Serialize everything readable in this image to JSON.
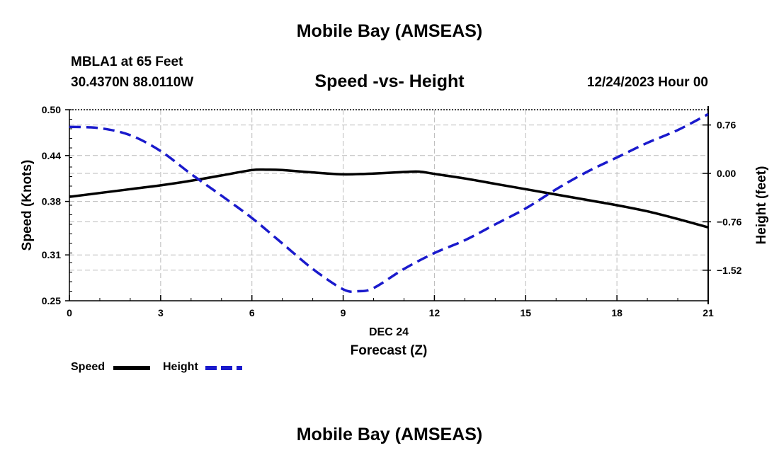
{
  "header": {
    "title": "Mobile Bay (AMSEAS)",
    "station": "MBLA1 at 65 Feet",
    "coordinates": "30.4370N  88.0110W",
    "subtitle": "Speed -vs- Height",
    "datetime": "12/24/2023 Hour 00"
  },
  "footer": {
    "title": "Mobile Bay (AMSEAS)"
  },
  "legend": {
    "speed_label": "Speed",
    "height_label": "Height"
  },
  "colors": {
    "speed": "#000000",
    "height": "#1a1acc",
    "grid": "#bbbbbb"
  },
  "chart_data": {
    "type": "line",
    "title": "Speed -vs- Height",
    "xlabel": "Forecast (Z)",
    "xlabel_date": "DEC 24",
    "ylabel_left": "Speed (Knots)",
    "ylabel_right": "Height (feet)",
    "xlim": [
      0,
      21
    ],
    "x_ticks": [
      0,
      3,
      6,
      9,
      12,
      15,
      18,
      21
    ],
    "x_tick_labels": [
      "0",
      "3",
      "6",
      "9",
      "12",
      "15",
      "18",
      "21"
    ],
    "ylim_left": [
      0.25,
      0.5
    ],
    "y_left_ticks": [
      0.25,
      0.31,
      0.38,
      0.44,
      0.5
    ],
    "y_left_tick_labels": [
      "0.25",
      "0.31",
      "0.38",
      "0.44",
      "0.50"
    ],
    "ylim_right": [
      -2.0,
      1.0
    ],
    "y_right_ticks": [
      -1.52,
      -0.76,
      0.0,
      0.76
    ],
    "y_right_tick_labels": [
      "−1.52",
      "−0.76",
      "0.00",
      "0.76"
    ],
    "grid": true,
    "series": [
      {
        "name": "Speed",
        "axis": "left",
        "style": "solid",
        "x": [
          0,
          1,
          2,
          3,
          4,
          5,
          6,
          6.5,
          7,
          8,
          9,
          10,
          11,
          11.5,
          12,
          13,
          14,
          15,
          16,
          17,
          18,
          19,
          20,
          21
        ],
        "y": [
          0.386,
          0.391,
          0.396,
          0.401,
          0.407,
          0.414,
          0.421,
          0.4215,
          0.421,
          0.418,
          0.4155,
          0.4165,
          0.4185,
          0.419,
          0.416,
          0.41,
          0.403,
          0.396,
          0.389,
          0.382,
          0.375,
          0.367,
          0.357,
          0.346
        ]
      },
      {
        "name": "Height",
        "axis": "right",
        "style": "dashed",
        "x": [
          0,
          1,
          2,
          3,
          4,
          5,
          6,
          7,
          8,
          9,
          9.5,
          10,
          11,
          12,
          13,
          14,
          15,
          16,
          17,
          18,
          19,
          20,
          21
        ],
        "y": [
          0.73,
          0.71,
          0.6,
          0.35,
          -0.01,
          -0.35,
          -0.7,
          -1.1,
          -1.5,
          -1.82,
          -1.85,
          -1.8,
          -1.5,
          -1.25,
          -1.05,
          -0.8,
          -0.55,
          -0.25,
          0.02,
          0.25,
          0.48,
          0.68,
          0.93
        ]
      }
    ]
  }
}
